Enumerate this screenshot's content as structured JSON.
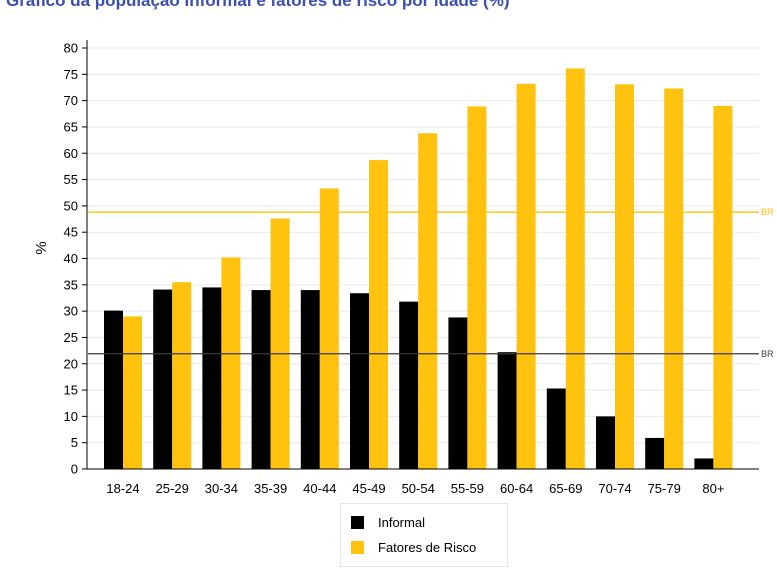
{
  "title": "Gráfico da população informal e fatores de risco por idade (%)",
  "colors": {
    "informal": "#000000",
    "risco": "#FFC20E",
    "ref_informal": "#3a3a3a",
    "ref_risco": "#FFC20E"
  },
  "chart_data": {
    "type": "bar",
    "categories": [
      "18-24",
      "25-29",
      "30-34",
      "35-39",
      "40-44",
      "45-49",
      "50-54",
      "55-59",
      "60-64",
      "65-69",
      "70-74",
      "75-79",
      "80+"
    ],
    "series": [
      {
        "name": "Informal",
        "values": [
          30.1,
          34.1,
          34.5,
          34.0,
          34.0,
          33.4,
          31.8,
          28.8,
          22.2,
          15.3,
          10.0,
          5.9,
          2.0
        ]
      },
      {
        "name": "Fatores de Risco",
        "values": [
          29.0,
          35.5,
          40.2,
          47.6,
          53.3,
          58.7,
          63.8,
          68.9,
          73.2,
          76.1,
          73.1,
          72.3,
          69.0
        ]
      }
    ],
    "reference_lines": [
      {
        "label": "BR",
        "value": 48.8,
        "series": "Fatores de Risco"
      },
      {
        "label": "BR",
        "value": 21.9,
        "series": "Informal"
      }
    ],
    "ylabel": "%",
    "xlabel": "",
    "ylim": [
      0,
      80
    ],
    "yticks": [
      0,
      5,
      10,
      15,
      20,
      25,
      30,
      35,
      40,
      45,
      50,
      55,
      60,
      65,
      70,
      75,
      80
    ],
    "grid": true,
    "legend_position": "bottom"
  },
  "legend": {
    "items": [
      "Informal",
      "Fatores de Risco"
    ]
  }
}
